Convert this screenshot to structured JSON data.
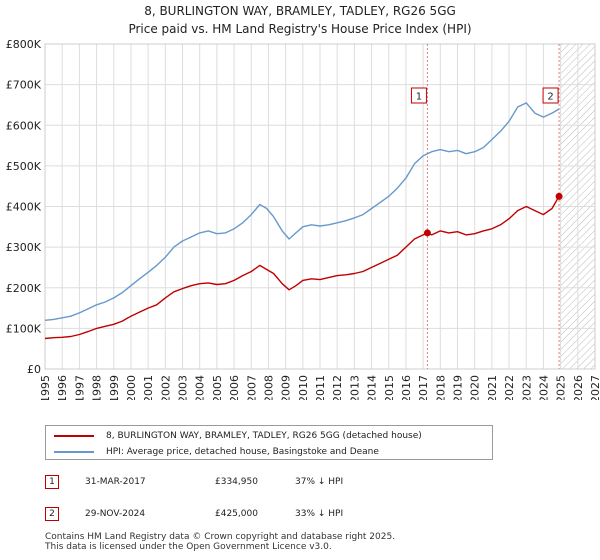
{
  "title_line1": "8, BURLINGTON WAY, BRAMLEY, TADLEY, RG26 5GG",
  "title_line2": "Price paid vs. HM Land Registry's House Price Index (HPI)",
  "chart_data": {
    "type": "line",
    "title": "8, BURLINGTON WAY, BRAMLEY, TADLEY, RG26 5GG — Price paid vs. HM Land Registry's House Price Index (HPI)",
    "xlabel": "",
    "ylabel": "",
    "xlim": [
      1995,
      2027
    ],
    "ylim": [
      0,
      800000
    ],
    "x_ticks": [
      "1995",
      "1996",
      "1997",
      "1998",
      "1999",
      "2000",
      "2001",
      "2002",
      "2003",
      "2004",
      "2005",
      "2006",
      "2007",
      "2008",
      "2009",
      "2010",
      "2011",
      "2012",
      "2013",
      "2014",
      "2015",
      "2016",
      "2017",
      "2018",
      "2019",
      "2020",
      "2021",
      "2022",
      "2023",
      "2024",
      "2025",
      "2026",
      "2027"
    ],
    "y_ticks": [
      {
        "value": 0,
        "label": "£0"
      },
      {
        "value": 100000,
        "label": "£100K"
      },
      {
        "value": 200000,
        "label": "£200K"
      },
      {
        "value": 300000,
        "label": "£300K"
      },
      {
        "value": 400000,
        "label": "£400K"
      },
      {
        "value": 500000,
        "label": "£500K"
      },
      {
        "value": 600000,
        "label": "£600K"
      },
      {
        "value": 700000,
        "label": "£700K"
      },
      {
        "value": 800000,
        "label": "£800K"
      }
    ],
    "grid": true,
    "future_hatch_from": 2025.0,
    "series": [
      {
        "name": "8, BURLINGTON WAY, BRAMLEY, TADLEY, RG26 5GG (detached house)",
        "color": "#c00000",
        "points": [
          [
            1995.0,
            75000
          ],
          [
            1995.5,
            77000
          ],
          [
            1996.0,
            78000
          ],
          [
            1996.5,
            80000
          ],
          [
            1997.0,
            85000
          ],
          [
            1997.5,
            92000
          ],
          [
            1998.0,
            100000
          ],
          [
            1998.5,
            105000
          ],
          [
            1999.0,
            110000
          ],
          [
            1999.5,
            118000
          ],
          [
            2000.0,
            130000
          ],
          [
            2000.5,
            140000
          ],
          [
            2001.0,
            150000
          ],
          [
            2001.5,
            158000
          ],
          [
            2002.0,
            175000
          ],
          [
            2002.5,
            190000
          ],
          [
            2003.0,
            198000
          ],
          [
            2003.5,
            205000
          ],
          [
            2004.0,
            210000
          ],
          [
            2004.5,
            212000
          ],
          [
            2005.0,
            208000
          ],
          [
            2005.5,
            210000
          ],
          [
            2006.0,
            218000
          ],
          [
            2006.5,
            230000
          ],
          [
            2007.0,
            240000
          ],
          [
            2007.5,
            255000
          ],
          [
            2007.9,
            245000
          ],
          [
            2008.3,
            235000
          ],
          [
            2008.8,
            210000
          ],
          [
            2009.2,
            195000
          ],
          [
            2009.6,
            205000
          ],
          [
            2010.0,
            218000
          ],
          [
            2010.5,
            222000
          ],
          [
            2011.0,
            220000
          ],
          [
            2011.5,
            225000
          ],
          [
            2012.0,
            230000
          ],
          [
            2012.5,
            232000
          ],
          [
            2013.0,
            235000
          ],
          [
            2013.5,
            240000
          ],
          [
            2014.0,
            250000
          ],
          [
            2014.5,
            260000
          ],
          [
            2015.0,
            270000
          ],
          [
            2015.5,
            280000
          ],
          [
            2016.0,
            300000
          ],
          [
            2016.5,
            320000
          ],
          [
            2017.0,
            330000
          ],
          [
            2017.25,
            334950
          ],
          [
            2017.5,
            330000
          ],
          [
            2018.0,
            340000
          ],
          [
            2018.5,
            335000
          ],
          [
            2019.0,
            338000
          ],
          [
            2019.5,
            330000
          ],
          [
            2020.0,
            333000
          ],
          [
            2020.5,
            340000
          ],
          [
            2021.0,
            345000
          ],
          [
            2021.5,
            355000
          ],
          [
            2022.0,
            370000
          ],
          [
            2022.5,
            390000
          ],
          [
            2023.0,
            400000
          ],
          [
            2023.5,
            390000
          ],
          [
            2024.0,
            380000
          ],
          [
            2024.5,
            395000
          ],
          [
            2024.91,
            425000
          ]
        ]
      },
      {
        "name": "HPI: Average price, detached house, Basingstoke and Deane",
        "color": "#6699cc",
        "points": [
          [
            1995.0,
            120000
          ],
          [
            1995.5,
            122000
          ],
          [
            1996.0,
            126000
          ],
          [
            1996.5,
            130000
          ],
          [
            1997.0,
            138000
          ],
          [
            1997.5,
            148000
          ],
          [
            1998.0,
            158000
          ],
          [
            1998.5,
            165000
          ],
          [
            1999.0,
            175000
          ],
          [
            1999.5,
            188000
          ],
          [
            2000.0,
            205000
          ],
          [
            2000.5,
            222000
          ],
          [
            2001.0,
            238000
          ],
          [
            2001.5,
            255000
          ],
          [
            2002.0,
            275000
          ],
          [
            2002.5,
            300000
          ],
          [
            2003.0,
            315000
          ],
          [
            2003.5,
            325000
          ],
          [
            2004.0,
            335000
          ],
          [
            2004.5,
            340000
          ],
          [
            2005.0,
            333000
          ],
          [
            2005.5,
            335000
          ],
          [
            2006.0,
            345000
          ],
          [
            2006.5,
            360000
          ],
          [
            2007.0,
            380000
          ],
          [
            2007.5,
            405000
          ],
          [
            2007.9,
            395000
          ],
          [
            2008.3,
            375000
          ],
          [
            2008.8,
            340000
          ],
          [
            2009.2,
            320000
          ],
          [
            2009.6,
            335000
          ],
          [
            2010.0,
            350000
          ],
          [
            2010.5,
            355000
          ],
          [
            2011.0,
            352000
          ],
          [
            2011.5,
            355000
          ],
          [
            2012.0,
            360000
          ],
          [
            2012.5,
            365000
          ],
          [
            2013.0,
            372000
          ],
          [
            2013.5,
            380000
          ],
          [
            2014.0,
            395000
          ],
          [
            2014.5,
            410000
          ],
          [
            2015.0,
            425000
          ],
          [
            2015.5,
            445000
          ],
          [
            2016.0,
            470000
          ],
          [
            2016.5,
            505000
          ],
          [
            2017.0,
            525000
          ],
          [
            2017.5,
            535000
          ],
          [
            2018.0,
            540000
          ],
          [
            2018.5,
            535000
          ],
          [
            2019.0,
            538000
          ],
          [
            2019.5,
            530000
          ],
          [
            2020.0,
            535000
          ],
          [
            2020.5,
            545000
          ],
          [
            2021.0,
            565000
          ],
          [
            2021.5,
            585000
          ],
          [
            2022.0,
            610000
          ],
          [
            2022.5,
            645000
          ],
          [
            2023.0,
            655000
          ],
          [
            2023.5,
            630000
          ],
          [
            2024.0,
            620000
          ],
          [
            2024.5,
            630000
          ],
          [
            2024.91,
            640000
          ]
        ]
      }
    ],
    "annotations": [
      {
        "id": "1",
        "x": 2017.25,
        "y": 334950,
        "label": "1"
      },
      {
        "id": "2",
        "x": 2024.91,
        "y": 425000,
        "label": "2"
      }
    ]
  },
  "legend": {
    "items": [
      {
        "label": "8, BURLINGTON WAY, BRAMLEY, TADLEY, RG26 5GG (detached house)",
        "color": "#c00000"
      },
      {
        "label": "HPI: Average price, detached house, Basingstoke and Deane",
        "color": "#6699cc"
      }
    ]
  },
  "sales": [
    {
      "num": "1",
      "date": "31-MAR-2017",
      "price": "£334,950",
      "hpi": "37% ↓ HPI"
    },
    {
      "num": "2",
      "date": "29-NOV-2024",
      "price": "£425,000",
      "hpi": "33% ↓ HPI"
    }
  ],
  "footer": {
    "line1": "Contains HM Land Registry data © Crown copyright and database right 2025.",
    "line2": "This data is licensed under the Open Government Licence v3.0."
  }
}
